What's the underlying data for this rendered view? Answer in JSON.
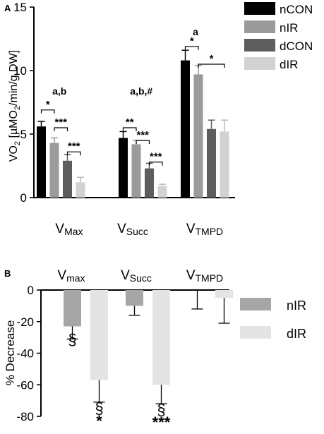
{
  "chart_data": [
    {
      "panel": "A",
      "type": "bar",
      "ylabel": "VO2 [µMO2/min/g DW]",
      "ylabel_main": "VO",
      "ylabel_sub": "2",
      "ylabel_mid": " [µMO",
      "ylabel_sub2": "2",
      "ylabel_end": "/min/g DW]",
      "ylim": [
        0,
        15
      ],
      "yticks": [
        "0",
        "5",
        "10",
        "15"
      ],
      "categories": [
        {
          "main": "V",
          "sub": "Max"
        },
        {
          "main": "V",
          "sub": "Succ"
        },
        {
          "main": "V",
          "sub": "TMPD"
        }
      ],
      "series": [
        {
          "name": "nCON",
          "color": "#000000",
          "values": [
            5.6,
            4.7,
            10.8
          ],
          "errors": [
            0.4,
            0.5,
            0.8
          ]
        },
        {
          "name": "nIR",
          "color": "#9b9b9b",
          "values": [
            4.3,
            4.2,
            9.7
          ],
          "errors": [
            0.4,
            0.3,
            0.7
          ]
        },
        {
          "name": "dCON",
          "color": "#5e5e5e",
          "values": [
            2.9,
            2.3,
            5.4
          ],
          "errors": [
            0.5,
            0.4,
            0.7
          ]
        },
        {
          "name": "dIR",
          "color": "#d2d2d2",
          "values": [
            1.2,
            0.9,
            5.2
          ],
          "errors": [
            0.4,
            0.15,
            0.9
          ]
        }
      ],
      "group_annotations": [
        "a,b",
        "a,b,#",
        "a"
      ],
      "brackets": [
        {
          "group": 0,
          "from": 0,
          "to": 1,
          "y": 6.9,
          "label": "*"
        },
        {
          "group": 0,
          "from": 1,
          "to": 2,
          "y": 5.5,
          "label": "***"
        },
        {
          "group": 0,
          "from": 2,
          "to": 3,
          "y": 3.6,
          "label": "***"
        },
        {
          "group": 1,
          "from": 0,
          "to": 1,
          "y": 5.5,
          "label": "**"
        },
        {
          "group": 1,
          "from": 1,
          "to": 2,
          "y": 4.5,
          "label": "***"
        },
        {
          "group": 1,
          "from": 2,
          "to": 3,
          "y": 2.8,
          "label": "***"
        },
        {
          "group": 2,
          "from": 0,
          "to": 1,
          "y": 11.9,
          "label": "*"
        },
        {
          "group": 2,
          "from": 1,
          "to": 3,
          "y": 10.5,
          "label": "*"
        }
      ]
    },
    {
      "panel": "B",
      "type": "bar",
      "ylabel": "% Decrease",
      "ylim": [
        -80,
        0
      ],
      "yticks": [
        "0",
        "-20",
        "-40",
        "-60",
        "-80"
      ],
      "categories": [
        {
          "main": "V",
          "sub": "max"
        },
        {
          "main": "V",
          "sub": "Succ"
        },
        {
          "main": "V",
          "sub": "TMPD"
        }
      ],
      "series": [
        {
          "name": "nIR",
          "color": "#a6a6a6",
          "values": [
            -23,
            -10,
            0
          ],
          "errors": [
            8,
            6,
            12
          ]
        },
        {
          "name": "dIR",
          "color": "#e4e4e4",
          "values": [
            -57,
            -60,
            -5
          ],
          "errors": [
            14,
            12,
            16
          ]
        }
      ],
      "marks": [
        {
          "group": 0,
          "series": 0,
          "lines": [
            "§"
          ]
        },
        {
          "group": 0,
          "series": 1,
          "lines": [
            "§",
            "*"
          ]
        },
        {
          "group": 1,
          "series": 1,
          "lines": [
            "§",
            "***"
          ]
        }
      ]
    }
  ],
  "panel_labels": [
    "A",
    "B"
  ]
}
